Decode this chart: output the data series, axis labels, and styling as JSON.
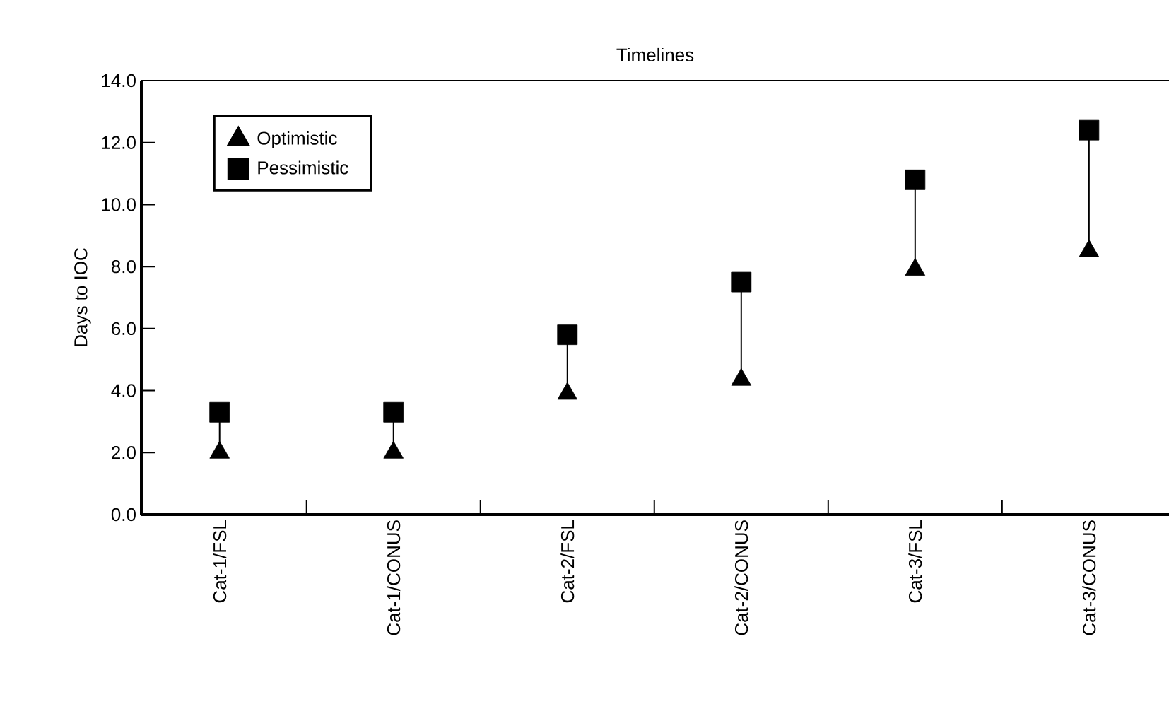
{
  "chart_data": {
    "type": "scatter",
    "title": "Timelines",
    "ylabel": "Days to IOC",
    "categories": [
      "Cat-1/FSL",
      "Cat-1/CONUS",
      "Cat-2/FSL",
      "Cat-2/CONUS",
      "Cat-3/FSL",
      "Cat-3/CONUS"
    ],
    "series": [
      {
        "name": "Optimistic",
        "color": "#000000",
        "marker": "triangle",
        "values": [
          2.0,
          2.0,
          3.9,
          4.35,
          7.9,
          8.5
        ]
      },
      {
        "name": "Pessimistic",
        "color": "#000000",
        "marker": "square",
        "values": [
          3.3,
          3.3,
          5.8,
          7.5,
          10.8,
          12.4
        ]
      }
    ],
    "ylim": [
      0,
      14
    ],
    "yticks": [
      {
        "value": 0,
        "label": "0.0"
      },
      {
        "value": 2,
        "label": "2.0"
      },
      {
        "value": 4,
        "label": "4.0"
      },
      {
        "value": 6,
        "label": "6.0"
      },
      {
        "value": 8,
        "label": "8.0"
      },
      {
        "value": 10,
        "label": "10.0"
      },
      {
        "value": 12,
        "label": "12.0"
      },
      {
        "value": 14,
        "label": "14.0"
      }
    ],
    "grid": false,
    "legend": "top left"
  }
}
